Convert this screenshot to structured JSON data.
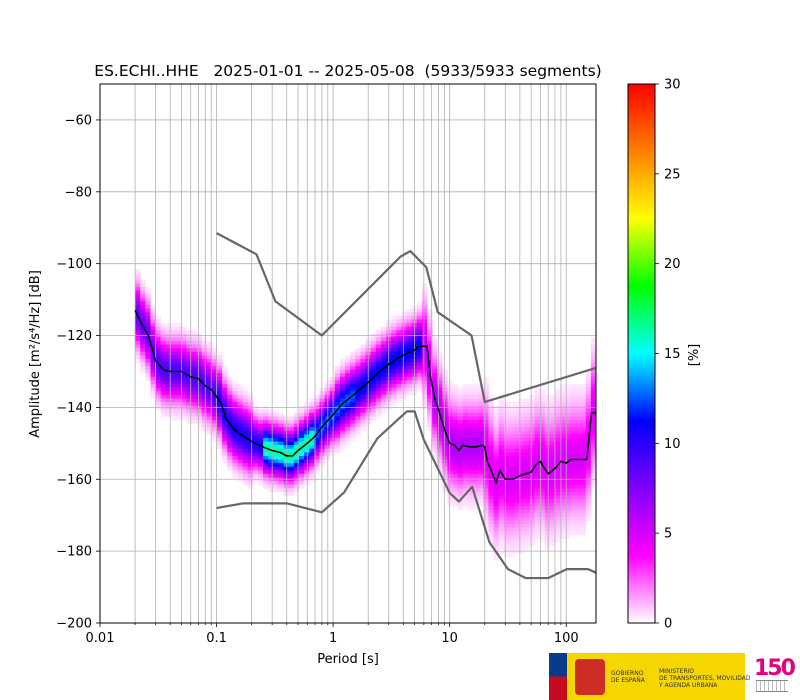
{
  "chart_data": {
    "type": "heatmap",
    "title": "ES.ECHI..HHE   2025-01-01 -- 2025-05-08  (5933/5933 segments)",
    "xlabel": "Period [s]",
    "ylabel": "Amplitude [m²/s⁴/Hz] [dB]",
    "x_scale": "log",
    "xlim": [
      0.01,
      180
    ],
    "ylim": [
      -200,
      -50
    ],
    "x_ticks": [
      {
        "value": 0.01,
        "label": "0.01"
      },
      {
        "value": 0.1,
        "label": "0.1"
      },
      {
        "value": 1,
        "label": "1"
      },
      {
        "value": 10,
        "label": "10"
      },
      {
        "value": 100,
        "label": "100"
      }
    ],
    "y_ticks": [
      {
        "value": -60,
        "label": "−60"
      },
      {
        "value": -80,
        "label": "−80"
      },
      {
        "value": -100,
        "label": "−100"
      },
      {
        "value": -120,
        "label": "−120"
      },
      {
        "value": -140,
        "label": "−140"
      },
      {
        "value": -160,
        "label": "−160"
      },
      {
        "value": -180,
        "label": "−180"
      },
      {
        "value": -200,
        "label": "−200"
      }
    ],
    "grid": true,
    "colorbar": {
      "label": "[%]",
      "range": [
        0,
        30
      ],
      "ticks": [
        {
          "value": 0,
          "label": "0"
        },
        {
          "value": 5,
          "label": "5"
        },
        {
          "value": 10,
          "label": "10"
        },
        {
          "value": 15,
          "label": "15"
        },
        {
          "value": 20,
          "label": "20"
        },
        {
          "value": 25,
          "label": "25"
        },
        {
          "value": 30,
          "label": "30"
        }
      ],
      "colors": [
        "#ffffff",
        "#ff00ff",
        "#8000ff",
        "#0000ff",
        "#00ffff",
        "#00ff00",
        "#ffff00",
        "#ff8000",
        "#ff0000"
      ]
    },
    "series": [
      {
        "role": "high-noise-model",
        "color": "#666666",
        "points": [
          [
            0.1,
            -91.5
          ],
          [
            0.22,
            -97.4
          ],
          [
            0.32,
            -110.5
          ],
          [
            0.8,
            -120
          ],
          [
            3.8,
            -98
          ],
          [
            4.6,
            -96.5
          ],
          [
            6.3,
            -101
          ],
          [
            7.9,
            -113.5
          ],
          [
            15.4,
            -120
          ],
          [
            20,
            -138.5
          ],
          [
            180,
            -129
          ]
        ]
      },
      {
        "role": "low-noise-model",
        "color": "#666666",
        "points": [
          [
            0.1,
            -168
          ],
          [
            0.17,
            -166.7
          ],
          [
            0.4,
            -166.7
          ],
          [
            0.8,
            -169.2
          ],
          [
            1.24,
            -163.7
          ],
          [
            2.4,
            -148.6
          ],
          [
            4.3,
            -141.1
          ],
          [
            5,
            -141.1
          ],
          [
            6,
            -149
          ],
          [
            10,
            -163.8
          ],
          [
            12,
            -166.2
          ],
          [
            15.6,
            -162.1
          ],
          [
            21.9,
            -177.5
          ],
          [
            31.6,
            -185
          ],
          [
            45,
            -187.5
          ],
          [
            70,
            -187.5
          ],
          [
            101,
            -185
          ],
          [
            154,
            -185
          ],
          [
            180,
            -186
          ]
        ]
      },
      {
        "role": "mode",
        "color": "#000000",
        "points": [
          [
            0.02,
            -113
          ],
          [
            0.023,
            -117
          ],
          [
            0.026,
            -120
          ],
          [
            0.03,
            -127
          ],
          [
            0.035,
            -129.5
          ],
          [
            0.04,
            -130
          ],
          [
            0.05,
            -130
          ],
          [
            0.06,
            -131.5
          ],
          [
            0.07,
            -132
          ],
          [
            0.08,
            -134
          ],
          [
            0.09,
            -135
          ],
          [
            0.1,
            -137
          ],
          [
            0.11,
            -139
          ],
          [
            0.12,
            -143
          ],
          [
            0.14,
            -146
          ],
          [
            0.17,
            -148
          ],
          [
            0.2,
            -149.5
          ],
          [
            0.25,
            -151
          ],
          [
            0.3,
            -152
          ],
          [
            0.35,
            -152.5
          ],
          [
            0.4,
            -153.5
          ],
          [
            0.45,
            -153.5
          ],
          [
            0.5,
            -152
          ],
          [
            0.6,
            -150
          ],
          [
            0.7,
            -148
          ],
          [
            0.8,
            -145.5
          ],
          [
            1.0,
            -142
          ],
          [
            1.2,
            -139
          ],
          [
            1.5,
            -136.5
          ],
          [
            2.0,
            -133
          ],
          [
            2.5,
            -130
          ],
          [
            3.0,
            -128
          ],
          [
            3.5,
            -126.5
          ],
          [
            4.0,
            -125.5
          ],
          [
            5.0,
            -124
          ],
          [
            5.5,
            -123
          ],
          [
            6.4,
            -123
          ],
          [
            6.8,
            -131
          ],
          [
            7.5,
            -138
          ],
          [
            8.0,
            -140.5
          ],
          [
            9.0,
            -146
          ],
          [
            10,
            -150
          ],
          [
            11,
            -150.5
          ],
          [
            12,
            -152
          ],
          [
            13,
            -150.5
          ],
          [
            15,
            -151
          ],
          [
            17,
            -151
          ],
          [
            19,
            -150.5
          ],
          [
            20,
            -151
          ],
          [
            21,
            -155
          ],
          [
            23,
            -158
          ],
          [
            25,
            -161
          ],
          [
            27,
            -157.5
          ],
          [
            30,
            -160
          ],
          [
            35,
            -160
          ],
          [
            40,
            -159
          ],
          [
            45,
            -158.5
          ],
          [
            50,
            -158
          ],
          [
            55,
            -156
          ],
          [
            60,
            -155
          ],
          [
            65,
            -157
          ],
          [
            70,
            -158.5
          ],
          [
            80,
            -157
          ],
          [
            90,
            -155
          ],
          [
            100,
            -155.5
          ],
          [
            110,
            -154.5
          ],
          [
            125,
            -154.5
          ],
          [
            150,
            -154.5
          ],
          [
            165,
            -141.5
          ],
          [
            180,
            -141.5
          ]
        ]
      }
    ]
  },
  "logos": {
    "gobierno_text": "GOBIERNO\nDE ESPAÑA",
    "ministerio_text": "MINISTERIO\nDE TRANSPORTES, MOVILIDAD\nY AGENDA URBANA",
    "ign_text": "150"
  }
}
